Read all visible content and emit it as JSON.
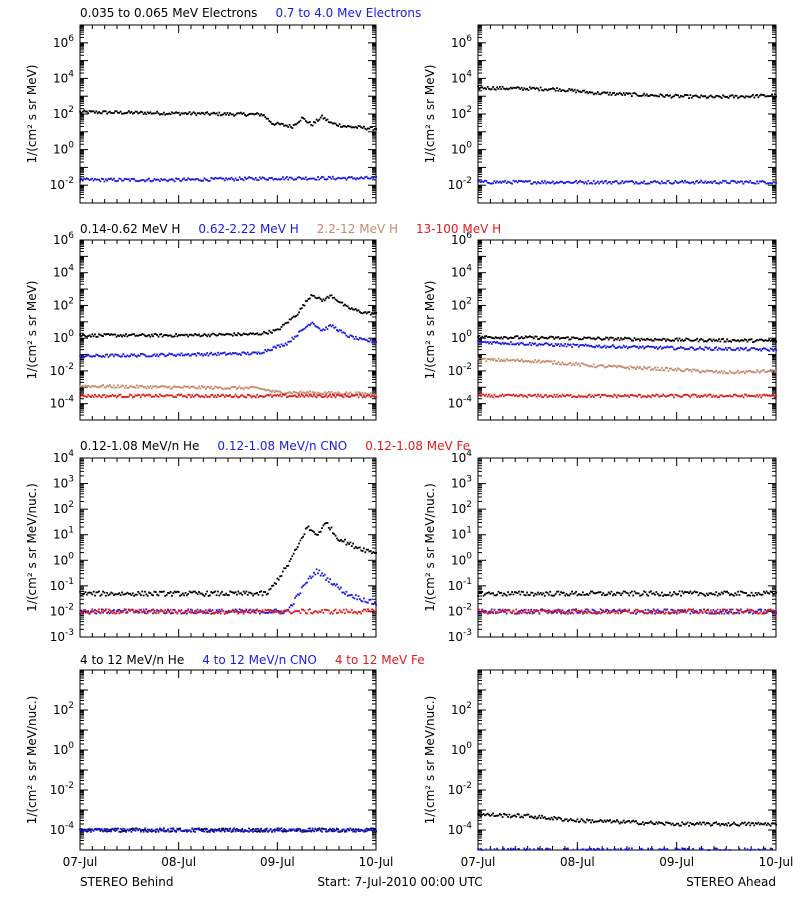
{
  "colors": {
    "black": "#000000",
    "blue": "#1a1ae6",
    "brown": "#c58a6c",
    "red": "#e11b1b"
  },
  "x_ticks": [
    "07-Jul",
    "08-Jul",
    "09-Jul",
    "10-Jul"
  ],
  "footer": {
    "left": "STEREO Behind",
    "center": "Start:  7-Jul-2010 00:00 UTC",
    "right": "STEREO Ahead"
  },
  "rows": [
    {
      "legend": [
        {
          "text": "0.035 to 0.065 MeV Electrons",
          "color": "black"
        },
        {
          "text": "0.7 to 4.0 Mev Electrons",
          "color": "blue"
        }
      ],
      "ylabel": "1/(cm² s sr MeV)",
      "ylim_exp": [
        -3,
        7
      ],
      "tick_labels": [
        {
          "exp": -2,
          "mant": "10",
          "sup": "-2"
        },
        {
          "exp": 0,
          "mant": "10",
          "sup": "0"
        },
        {
          "exp": 2,
          "mant": "10",
          "sup": "2"
        },
        {
          "exp": 4,
          "mant": "10",
          "sup": "4"
        },
        {
          "exp": 6,
          "mant": "10",
          "sup": "6"
        }
      ]
    },
    {
      "legend": [
        {
          "text": "0.14-0.62 MeV H",
          "color": "black"
        },
        {
          "text": "0.62-2.22 MeV H",
          "color": "blue"
        },
        {
          "text": "2.2-12 MeV H",
          "color": "brown"
        },
        {
          "text": "13-100 MeV H",
          "color": "red"
        }
      ],
      "ylabel": "1/(cm² s sr MeV)",
      "ylim_exp": [
        -5,
        6
      ],
      "tick_labels": [
        {
          "exp": -4,
          "mant": "10",
          "sup": "-4"
        },
        {
          "exp": -2,
          "mant": "10",
          "sup": "-2"
        },
        {
          "exp": 0,
          "mant": "10",
          "sup": "0"
        },
        {
          "exp": 2,
          "mant": "10",
          "sup": "2"
        },
        {
          "exp": 4,
          "mant": "10",
          "sup": "4"
        },
        {
          "exp": 6,
          "mant": "10",
          "sup": "6"
        }
      ]
    },
    {
      "legend": [
        {
          "text": "0.12-1.08 MeV/n He",
          "color": "black"
        },
        {
          "text": "0.12-1.08 MeV/n CNO",
          "color": "blue"
        },
        {
          "text": "0.12-1.08 MeV Fe",
          "color": "red"
        }
      ],
      "ylabel": "1/(cm² s sr MeV/nuc.)",
      "ylim_exp": [
        -3,
        4
      ],
      "tick_labels": [
        {
          "exp": -3,
          "mant": "10",
          "sup": "-3"
        },
        {
          "exp": -2,
          "mant": "10",
          "sup": "-2"
        },
        {
          "exp": -1,
          "mant": "10",
          "sup": "-1"
        },
        {
          "exp": 0,
          "mant": "10",
          "sup": "0"
        },
        {
          "exp": 1,
          "mant": "10",
          "sup": "1"
        },
        {
          "exp": 2,
          "mant": "10",
          "sup": "2"
        },
        {
          "exp": 3,
          "mant": "10",
          "sup": "3"
        },
        {
          "exp": 4,
          "mant": "10",
          "sup": "4"
        }
      ]
    },
    {
      "legend": [
        {
          "text": "4 to 12 MeV/n He",
          "color": "black"
        },
        {
          "text": "4 to 12 MeV/n CNO",
          "color": "blue"
        },
        {
          "text": "4 to 12 MeV Fe",
          "color": "red"
        }
      ],
      "ylabel": "1/(cm² s sr MeV/nuc.)",
      "ylim_exp": [
        -5,
        4
      ],
      "tick_labels": [
        {
          "exp": -4,
          "mant": "10",
          "sup": "-4"
        },
        {
          "exp": -2,
          "mant": "10",
          "sup": "-2"
        },
        {
          "exp": 0,
          "mant": "10",
          "sup": "0"
        },
        {
          "exp": 2,
          "mant": "10",
          "sup": "2"
        }
      ]
    }
  ],
  "chart_data": [
    {
      "type": "scatter",
      "panel": "Behind",
      "row": 1,
      "ylog": true,
      "ylim": [
        0.001,
        10000000
      ],
      "xlim_days": [
        0,
        3
      ],
      "series": [
        {
          "name": "0.035 to 0.065 MeV Electrons",
          "color": "black",
          "points": [
            [
              0,
              130
            ],
            [
              0.5,
              120
            ],
            [
              1.0,
              110
            ],
            [
              1.5,
              100
            ],
            [
              1.85,
              95
            ],
            [
              1.95,
              30
            ],
            [
              2.05,
              25
            ],
            [
              2.15,
              20
            ],
            [
              2.25,
              60
            ],
            [
              2.35,
              25
            ],
            [
              2.45,
              70
            ],
            [
              2.55,
              30
            ],
            [
              2.7,
              20
            ],
            [
              3.0,
              15
            ]
          ]
        },
        {
          "name": "0.7 to 4.0 Mev Electrons",
          "color": "blue",
          "points": [
            [
              0,
              0.02
            ],
            [
              1.0,
              0.02
            ],
            [
              2.0,
              0.025
            ],
            [
              3.0,
              0.025
            ]
          ]
        }
      ]
    },
    {
      "type": "scatter",
      "panel": "Ahead",
      "row": 1,
      "ylog": true,
      "ylim": [
        0.001,
        10000000
      ],
      "xlim_days": [
        0,
        3
      ],
      "series": [
        {
          "name": "0.035 to 0.065 MeV Electrons",
          "color": "black",
          "points": [
            [
              0,
              3000
            ],
            [
              0.8,
              2500
            ],
            [
              1.2,
              1500
            ],
            [
              2.0,
              1000
            ],
            [
              2.4,
              900
            ],
            [
              3.0,
              1100
            ]
          ]
        },
        {
          "name": "0.7 to 4.0 Mev Electrons",
          "color": "blue",
          "points": [
            [
              0,
              0.015
            ],
            [
              1.0,
              0.015
            ],
            [
              2.0,
              0.015
            ],
            [
              3.0,
              0.015
            ]
          ]
        }
      ]
    },
    {
      "type": "scatter",
      "panel": "Behind",
      "row": 2,
      "ylog": true,
      "ylim": [
        1e-05,
        1000000
      ],
      "xlim_days": [
        0,
        3
      ],
      "series": [
        {
          "name": "0.14-0.62 MeV H",
          "color": "black",
          "points": [
            [
              0,
              1.5
            ],
            [
              1.0,
              1.5
            ],
            [
              1.8,
              1.8
            ],
            [
              2.0,
              3
            ],
            [
              2.2,
              30
            ],
            [
              2.35,
              500
            ],
            [
              2.45,
              200
            ],
            [
              2.55,
              400
            ],
            [
              2.7,
              80
            ],
            [
              2.85,
              40
            ],
            [
              3.0,
              30
            ]
          ]
        },
        {
          "name": "0.62-2.22 MeV H",
          "color": "blue",
          "points": [
            [
              0,
              0.08
            ],
            [
              1.0,
              0.1
            ],
            [
              1.8,
              0.12
            ],
            [
              2.1,
              0.5
            ],
            [
              2.25,
              3
            ],
            [
              2.35,
              10
            ],
            [
              2.45,
              3
            ],
            [
              2.55,
              6
            ],
            [
              2.7,
              1.5
            ],
            [
              2.85,
              0.8
            ],
            [
              3.0,
              0.6
            ]
          ]
        },
        {
          "name": "2.2-12 MeV H",
          "color": "brown",
          "points": [
            [
              0,
              0.0012
            ],
            [
              1.0,
              0.001
            ],
            [
              1.8,
              0.0009
            ],
            [
              2.0,
              0.0005
            ],
            [
              3.0,
              0.0004
            ]
          ]
        },
        {
          "name": "13-100 MeV H",
          "color": "red",
          "points": [
            [
              0,
              0.0003
            ],
            [
              1.5,
              0.0003
            ],
            [
              3.0,
              0.0003
            ]
          ]
        }
      ]
    },
    {
      "type": "scatter",
      "panel": "Ahead",
      "row": 2,
      "ylog": true,
      "ylim": [
        1e-05,
        1000000
      ],
      "xlim_days": [
        0,
        3
      ],
      "series": [
        {
          "name": "0.14-0.62 MeV H",
          "color": "black",
          "points": [
            [
              0,
              1.2
            ],
            [
              1.0,
              1.0
            ],
            [
              2.0,
              0.8
            ],
            [
              3.0,
              0.7
            ]
          ]
        },
        {
          "name": "0.62-2.22 MeV H",
          "color": "blue",
          "points": [
            [
              0,
              0.6
            ],
            [
              1.0,
              0.35
            ],
            [
              2.0,
              0.25
            ],
            [
              3.0,
              0.2
            ]
          ]
        },
        {
          "name": "2.2-12 MeV H",
          "color": "brown",
          "points": [
            [
              0,
              0.05
            ],
            [
              0.6,
              0.04
            ],
            [
              1.2,
              0.02
            ],
            [
              2.0,
              0.012
            ],
            [
              2.5,
              0.008
            ],
            [
              3.0,
              0.01
            ]
          ]
        },
        {
          "name": "13-100 MeV H",
          "color": "red",
          "points": [
            [
              0,
              0.0003
            ],
            [
              1.5,
              0.0003
            ],
            [
              3.0,
              0.0003
            ]
          ]
        }
      ]
    },
    {
      "type": "scatter",
      "panel": "Behind",
      "row": 3,
      "ylog": true,
      "ylim": [
        0.0005,
        10000
      ],
      "xlim_days": [
        0,
        3
      ],
      "series": [
        {
          "name": "0.12-1.08 MeV/n He",
          "color": "black",
          "points": [
            [
              0,
              0.05
            ],
            [
              1.9,
              0.05
            ],
            [
              2.1,
              0.6
            ],
            [
              2.2,
              3
            ],
            [
              2.3,
              20
            ],
            [
              2.4,
              10
            ],
            [
              2.5,
              30
            ],
            [
              2.6,
              8
            ],
            [
              2.75,
              4
            ],
            [
              2.9,
              2.5
            ],
            [
              3.0,
              2
            ]
          ]
        },
        {
          "name": "0.12-1.08 MeV/n CNO",
          "color": "blue",
          "points": [
            [
              0,
              0.01
            ],
            [
              2.1,
              0.01
            ],
            [
              2.3,
              0.15
            ],
            [
              2.4,
              0.4
            ],
            [
              2.5,
              0.2
            ],
            [
              2.7,
              0.05
            ],
            [
              3.0,
              0.02
            ]
          ]
        },
        {
          "name": "0.12-1.08 MeV Fe",
          "color": "red",
          "points": [
            [
              0,
              0.01
            ],
            [
              3.0,
              0.01
            ]
          ]
        }
      ]
    },
    {
      "type": "scatter",
      "panel": "Ahead",
      "row": 3,
      "ylog": true,
      "ylim": [
        0.0005,
        10000
      ],
      "xlim_days": [
        0,
        3
      ],
      "series": [
        {
          "name": "0.12-1.08 MeV/n He",
          "color": "black",
          "points": [
            [
              0,
              0.05
            ],
            [
              3.0,
              0.05
            ]
          ]
        },
        {
          "name": "0.12-1.08 MeV/n CNO",
          "color": "blue",
          "points": [
            [
              0,
              0.01
            ],
            [
              3.0,
              0.01
            ]
          ]
        },
        {
          "name": "0.12-1.08 MeV Fe",
          "color": "red",
          "points": [
            [
              0,
              0.01
            ],
            [
              3.0,
              0.01
            ]
          ]
        }
      ]
    },
    {
      "type": "scatter",
      "panel": "Behind",
      "row": 4,
      "ylog": true,
      "ylim": [
        1e-05,
        10000
      ],
      "xlim_days": [
        0,
        3
      ],
      "series": [
        {
          "name": "4 to 12 MeV/n He",
          "color": "black",
          "points": [
            [
              0,
              0.0001
            ],
            [
              3.0,
              0.0001
            ]
          ]
        },
        {
          "name": "4 to 12 MeV/n CNO",
          "color": "blue",
          "points": [
            [
              0,
              0.0001
            ],
            [
              3.0,
              0.0001
            ]
          ]
        }
      ]
    },
    {
      "type": "scatter",
      "panel": "Ahead",
      "row": 4,
      "ylog": true,
      "ylim": [
        1e-05,
        10000
      ],
      "xlim_days": [
        0,
        3
      ],
      "series": [
        {
          "name": "4 to 12 MeV/n He",
          "color": "black",
          "points": [
            [
              0,
              0.0006
            ],
            [
              0.5,
              0.0005
            ],
            [
              1.0,
              0.0003
            ],
            [
              1.5,
              0.00025
            ],
            [
              2.0,
              0.0002
            ],
            [
              3.0,
              0.0002
            ]
          ]
        },
        {
          "name": "4 to 12 MeV/n CNO",
          "color": "blue",
          "points": [
            [
              0,
              1e-05
            ],
            [
              3.0,
              1e-05
            ]
          ]
        }
      ]
    }
  ]
}
